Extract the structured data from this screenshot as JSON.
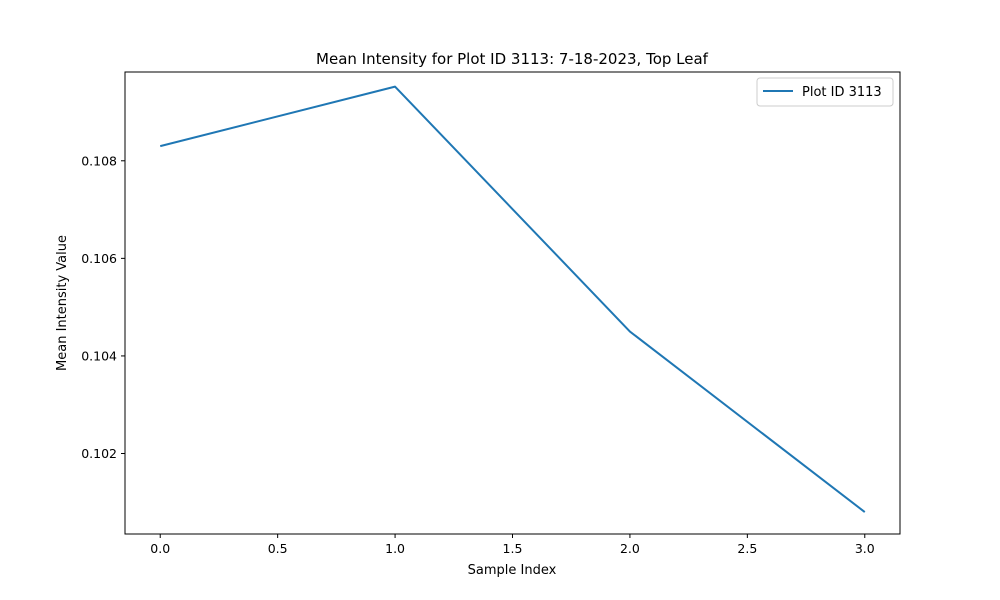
{
  "chart_data": {
    "type": "line",
    "title": "Mean Intensity for Plot ID 3113: 7-18-2023, Top Leaf",
    "xlabel": "Sample Index",
    "ylabel": "Mean Intensity Value",
    "x": [
      0,
      1,
      2,
      3
    ],
    "series": [
      {
        "name": "Plot ID 3113",
        "color": "#1f77b4",
        "values": [
          0.1083,
          0.10952,
          0.1045,
          0.1008
        ]
      }
    ],
    "xlim": [
      -0.15,
      3.15
    ],
    "ylim": [
      0.10035,
      0.10982
    ],
    "xticks": [
      0.0,
      0.5,
      1.0,
      1.5,
      2.0,
      2.5,
      3.0
    ],
    "xtick_labels": [
      "0.0",
      "0.5",
      "1.0",
      "1.5",
      "2.0",
      "2.5",
      "3.0"
    ],
    "yticks": [
      0.102,
      0.104,
      0.106,
      0.108
    ],
    "ytick_labels": [
      "0.102",
      "0.104",
      "0.106",
      "0.108"
    ],
    "grid": false,
    "legend": "top-right"
  }
}
